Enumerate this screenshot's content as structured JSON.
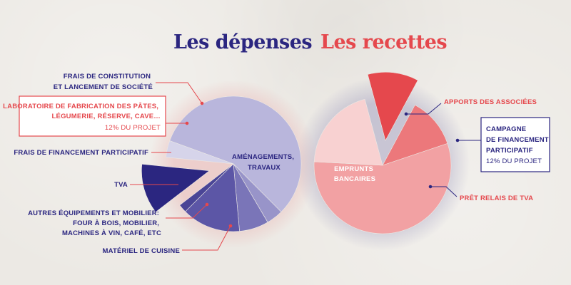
{
  "titles": {
    "depenses": "Les dépenses",
    "recettes": "Les recettes"
  },
  "colors": {
    "navy": "#2b2680",
    "red": "#e5484d",
    "dep_aménagements": "#b9b6dc",
    "dep_frais_constitution": "#d6d4ea",
    "dep_laboratoire": "#2b2680",
    "dep_financement": "#4a4596",
    "dep_tva": "#5c56a6",
    "dep_autres": "#7a75b8",
    "dep_materiel": "#9894c9",
    "rec_emprunts": "#f2a1a3",
    "rec_apports": "#f8d1d1",
    "rec_campagne": "#e5484d",
    "rec_pret_relais": "#ec787b"
  },
  "chart_data": [
    {
      "type": "pie",
      "title": "Les dépenses",
      "slices": [
        {
          "label": "AMÉNAGEMENTS, TRAVAUX",
          "percent": 57,
          "color": "#b9b6dc"
        },
        {
          "label": "MATÉRIEL DE CUISINE",
          "percent": 4,
          "color": "#9894c9"
        },
        {
          "label": "AUTRES ÉQUIPEMENTS ET MOBILIER: FOUR À BOIS, MOBILIER, MACHINES À VIN, CAFÉ, ETC",
          "percent": 7,
          "color": "#7a75b8"
        },
        {
          "label": "TVA",
          "percent": 14,
          "color": "#5c56a6"
        },
        {
          "label": "FRAIS DE FINANCEMENT PARTICIPATIF",
          "percent": 2,
          "color": "#4a4596"
        },
        {
          "label": "LABORATOIRE DE FABRICATION DES PÂTES, LÉGUMERIE, RÉSERVE, CAVE…",
          "percent": 12,
          "color": "#2b2680",
          "exploded": true,
          "note": "12% DU PROJET"
        },
        {
          "label": "FRAIS DE CONSTITUTION ET LANCEMENT DE SOCIÉTÉ",
          "percent": 4,
          "color": "#d6d4ea"
        }
      ]
    },
    {
      "type": "pie",
      "title": "Les recettes",
      "slices": [
        {
          "label": "EMPRUNTS BANCAIRES",
          "percent": 56,
          "color": "#f2a1a3"
        },
        {
          "label": "APPORTS DES ASSOCIÉES",
          "percent": 20,
          "color": "#f8d1d1"
        },
        {
          "label": "CAMPAGNE DE FINANCEMENT PARTICIPATIF",
          "percent": 12,
          "color": "#e5484d",
          "exploded": true,
          "note": "12% DU PROJET"
        },
        {
          "label": "PRÊT RELAIS DE TVA",
          "percent": 12,
          "color": "#ec787b"
        }
      ]
    }
  ],
  "labels": {
    "frais_constitution": [
      "FRAIS DE CONSTITUTION",
      "ET LANCEMENT DE SOCIÉTÉ"
    ],
    "laboratoire": [
      "LABORATOIRE DE FABRICATION DES PÂTES,",
      "LÉGUMERIE, RÉSERVE, CAVE…"
    ],
    "laboratoire_note": "12% DU PROJET",
    "frais_financement": "FRAIS DE FINANCEMENT PARTICIPATIF",
    "tva": "TVA",
    "autres": [
      "AUTRES ÉQUIPEMENTS ET MOBILIER:",
      "FOUR À BOIS, MOBILIER,",
      "MACHINES À VIN, CAFÉ, ETC"
    ],
    "materiel": "MATÉRIEL DE CUISINE",
    "amenagements": [
      "AMÉNAGEMENTS,",
      "TRAVAUX"
    ],
    "emprunts": [
      "EMPRUNTS",
      "BANCAIRES"
    ],
    "apports": "APPORTS DES ASSOCIÉES",
    "campagne": [
      "CAMPAGNE",
      "DE FINANCEMENT",
      "PARTICIPATIF"
    ],
    "campagne_note": "12% DU PROJET",
    "pret_relais": "PRÊT RELAIS DE TVA"
  }
}
